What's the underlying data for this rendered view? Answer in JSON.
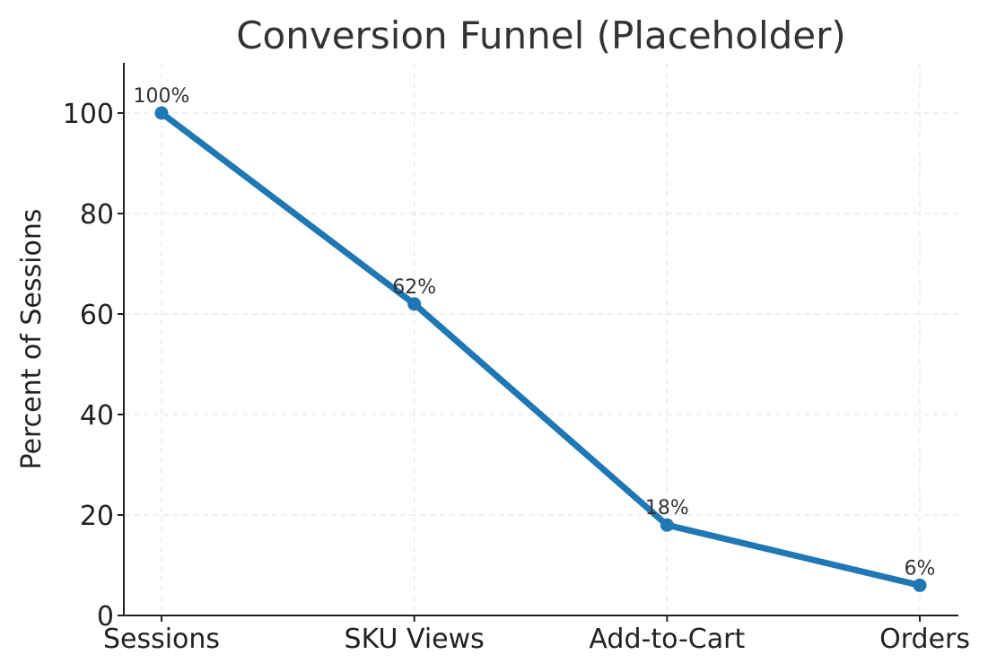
{
  "chart_data": {
    "type": "line",
    "title": "Conversion Funnel (Placeholder)",
    "xlabel": "",
    "ylabel": "Percent of Sessions",
    "categories": [
      "Sessions",
      "SKU Views",
      "Add-to-Cart",
      "Orders"
    ],
    "series": [
      {
        "values": [
          100,
          62,
          18,
          6
        ],
        "data_labels": [
          "100%",
          "62%",
          "18%",
          "6%"
        ],
        "color": "#1f77b4"
      }
    ],
    "ylim": [
      0,
      110
    ],
    "yticks": [
      0,
      20,
      40,
      60,
      80,
      100
    ],
    "ytick_labels": [
      "0",
      "20",
      "40",
      "60",
      "80",
      "100"
    ],
    "grid": true,
    "legend": "none"
  }
}
